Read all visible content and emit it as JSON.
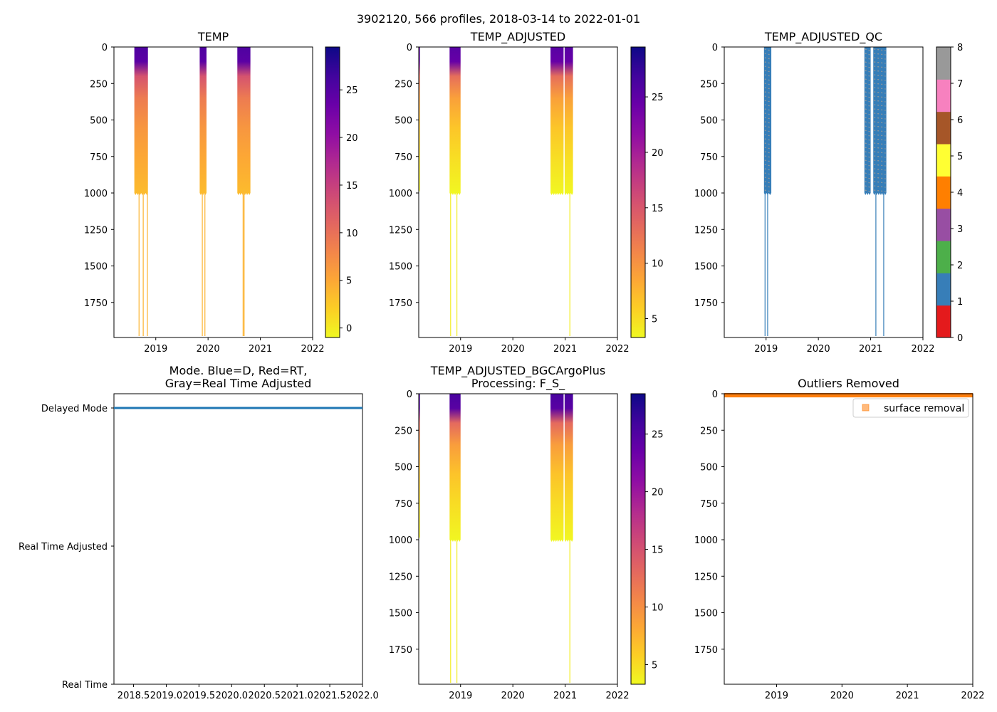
{
  "figure": {
    "suptitle": "3902120, 566 profiles, 2018-03-14 to 2022-01-01"
  },
  "chart_data": [
    {
      "id": "temp",
      "type": "heatmap",
      "title": "TEMP",
      "xlim": [
        2018.2,
        2022.0
      ],
      "ylim": [
        1990,
        0
      ],
      "xticks": [
        2019,
        2020,
        2021,
        2022
      ],
      "xtick_labels": [
        "2019",
        "2020",
        "2021",
        "2022"
      ],
      "yticks": [
        0,
        250,
        500,
        750,
        1000,
        1250,
        1500,
        1750
      ],
      "yticks_labels": [
        "0",
        "250",
        "500",
        "750",
        "1000",
        "1250",
        "1500",
        "1750"
      ],
      "colormap": "plasma_r",
      "colorbar": {
        "range": [
          -1,
          29.5
        ],
        "ticks": [
          0,
          5,
          10,
          15,
          20,
          25
        ],
        "tick_labels": [
          "0",
          "5",
          "10",
          "15",
          "20",
          "25"
        ]
      },
      "blocks": [
        {
          "x0": 2018.59,
          "x1": 2018.85,
          "ymax": 1000
        },
        {
          "x0": 2019.84,
          "x1": 2019.97,
          "ymax": 1000
        },
        {
          "x0": 2020.56,
          "x1": 2020.81,
          "ymax": 1000
        }
      ],
      "deep_profiles": [
        2018.68,
        2018.76,
        2018.84,
        2019.89,
        2019.94,
        2020.67,
        2020.69
      ]
    },
    {
      "id": "temp_adjusted",
      "type": "heatmap",
      "title": "TEMP_ADJUSTED",
      "xlim": [
        2018.2,
        2022.0
      ],
      "ylim": [
        1990,
        0
      ],
      "xticks": [
        2019,
        2020,
        2021,
        2022
      ],
      "xtick_labels": [
        "2019",
        "2020",
        "2021",
        "2022"
      ],
      "yticks": [
        0,
        250,
        500,
        750,
        1000,
        1250,
        1500,
        1750
      ],
      "yticks_labels": [
        "0",
        "250",
        "500",
        "750",
        "1000",
        "1250",
        "1500",
        "1750"
      ],
      "colormap": "plasma_r",
      "colorbar": {
        "range": [
          3.3,
          29.5
        ],
        "ticks": [
          5,
          10,
          15,
          20,
          25
        ],
        "tick_labels": [
          "5",
          "10",
          "15",
          "20",
          "25"
        ]
      },
      "blocks": [
        {
          "x0": 2018.21,
          "x1": 2018.225,
          "ymax": 980
        },
        {
          "x0": 2018.79,
          "x1": 2019.0,
          "ymax": 1000
        },
        {
          "x0": 2020.72,
          "x1": 2020.97,
          "ymax": 1000
        },
        {
          "x0": 2020.99,
          "x1": 2021.15,
          "ymax": 1000
        }
      ],
      "deep_profiles": [
        2018.81,
        2018.93,
        2021.09
      ]
    },
    {
      "id": "temp_adjusted_qc",
      "type": "heatmap",
      "title": "TEMP_ADJUSTED_QC",
      "xlim": [
        2018.2,
        2022.0
      ],
      "ylim": [
        1990,
        0
      ],
      "xticks": [
        2019,
        2020,
        2021,
        2022
      ],
      "xtick_labels": [
        "2019",
        "2020",
        "2021",
        "2022"
      ],
      "yticks": [
        0,
        250,
        500,
        750,
        1000,
        1250,
        1500,
        1750
      ],
      "yticks_labels": [
        "0",
        "250",
        "500",
        "750",
        "1000",
        "1250",
        "1500",
        "1750"
      ],
      "colorbar": {
        "range": [
          0,
          8
        ],
        "ticks": [
          0,
          1,
          2,
          3,
          4,
          5,
          6,
          7,
          8
        ],
        "tick_labels": [
          "0",
          "1",
          "2",
          "3",
          "4",
          "5",
          "6",
          "7",
          "8"
        ],
        "colors": [
          "#e41a1c",
          "#377eb8",
          "#4daf4a",
          "#984ea3",
          "#ff7f00",
          "#ffff33",
          "#a65628",
          "#f781bf",
          "#999999"
        ]
      },
      "blocks": [
        {
          "x0": 2018.96,
          "x1": 2019.1,
          "ymax": 1000
        },
        {
          "x0": 2020.88,
          "x1": 2021.0,
          "ymax": 1000
        },
        {
          "x0": 2021.05,
          "x1": 2021.3,
          "ymax": 1000
        }
      ],
      "deep_profiles": [
        2018.98,
        2019.03,
        2021.1,
        2021.25
      ],
      "qc_colors": [
        "#377eb8",
        "#999999"
      ]
    },
    {
      "id": "mode",
      "type": "line",
      "title": "Mode. Blue=D, Red=RT,",
      "title_line2": "Gray=Real Time Adjusted",
      "xlim": [
        2018.2,
        2022.0
      ],
      "xticks": [
        2018.5,
        2019.0,
        2019.5,
        2020.0,
        2020.5,
        2021.0,
        2021.5,
        2022.0
      ],
      "xtick_labels": [
        "2018.5",
        "2019.0",
        "2019.5",
        "2020.0",
        "2020.5",
        "2021.0",
        "2021.5",
        "2022.0"
      ],
      "categories": [
        "Delayed Mode",
        "Real Time Adjusted",
        "Real Time"
      ],
      "series": [
        {
          "name": "Delayed Mode",
          "x": [
            2018.2,
            2022.0
          ],
          "values": [
            "Delayed Mode",
            "Delayed Mode"
          ],
          "color": "#1f77b4"
        }
      ]
    },
    {
      "id": "temp_adjusted_bgc",
      "type": "heatmap",
      "title": "TEMP_ADJUSTED_BGCArgoPlus",
      "title_line2": "Processing: F_S_",
      "xlim": [
        2018.2,
        2022.0
      ],
      "ylim": [
        1990,
        0
      ],
      "xticks": [
        2019,
        2020,
        2021,
        2022
      ],
      "xtick_labels": [
        "2019",
        "2020",
        "2021",
        "2022"
      ],
      "yticks": [
        0,
        250,
        500,
        750,
        1000,
        1250,
        1500,
        1750
      ],
      "yticks_labels": [
        "0",
        "250",
        "500",
        "750",
        "1000",
        "1250",
        "1500",
        "1750"
      ],
      "colormap": "plasma_r",
      "colorbar": {
        "range": [
          3.3,
          28.5
        ],
        "ticks": [
          5,
          10,
          15,
          20,
          25
        ],
        "tick_labels": [
          "5",
          "10",
          "15",
          "20",
          "25"
        ]
      },
      "blocks": [
        {
          "x0": 2018.21,
          "x1": 2018.225,
          "ymax": 980
        },
        {
          "x0": 2018.79,
          "x1": 2019.0,
          "ymax": 1000
        },
        {
          "x0": 2020.72,
          "x1": 2020.97,
          "ymax": 1000
        },
        {
          "x0": 2020.99,
          "x1": 2021.15,
          "ymax": 1000
        }
      ],
      "deep_profiles": [
        2018.81,
        2018.93,
        2021.09
      ]
    },
    {
      "id": "outliers",
      "type": "scatter",
      "title": "Outliers Removed",
      "xlim": [
        2018.2,
        2022.0
      ],
      "ylim": [
        1990,
        0
      ],
      "xticks": [
        2019,
        2020,
        2021,
        2022
      ],
      "xtick_labels": [
        "2019",
        "2020",
        "2021",
        "2022"
      ],
      "yticks": [
        0,
        250,
        500,
        750,
        1000,
        1250,
        1500,
        1750
      ],
      "yticks_labels": [
        "0",
        "250",
        "500",
        "750",
        "1000",
        "1250",
        "1500",
        "1750"
      ],
      "series": [
        {
          "name": "surface removal",
          "x_range": [
            2018.2,
            2022.0
          ],
          "y_range": [
            0,
            20
          ],
          "color": "#ff7f0e"
        }
      ],
      "legend": {
        "label": "surface removal",
        "location": "upper right"
      }
    }
  ]
}
